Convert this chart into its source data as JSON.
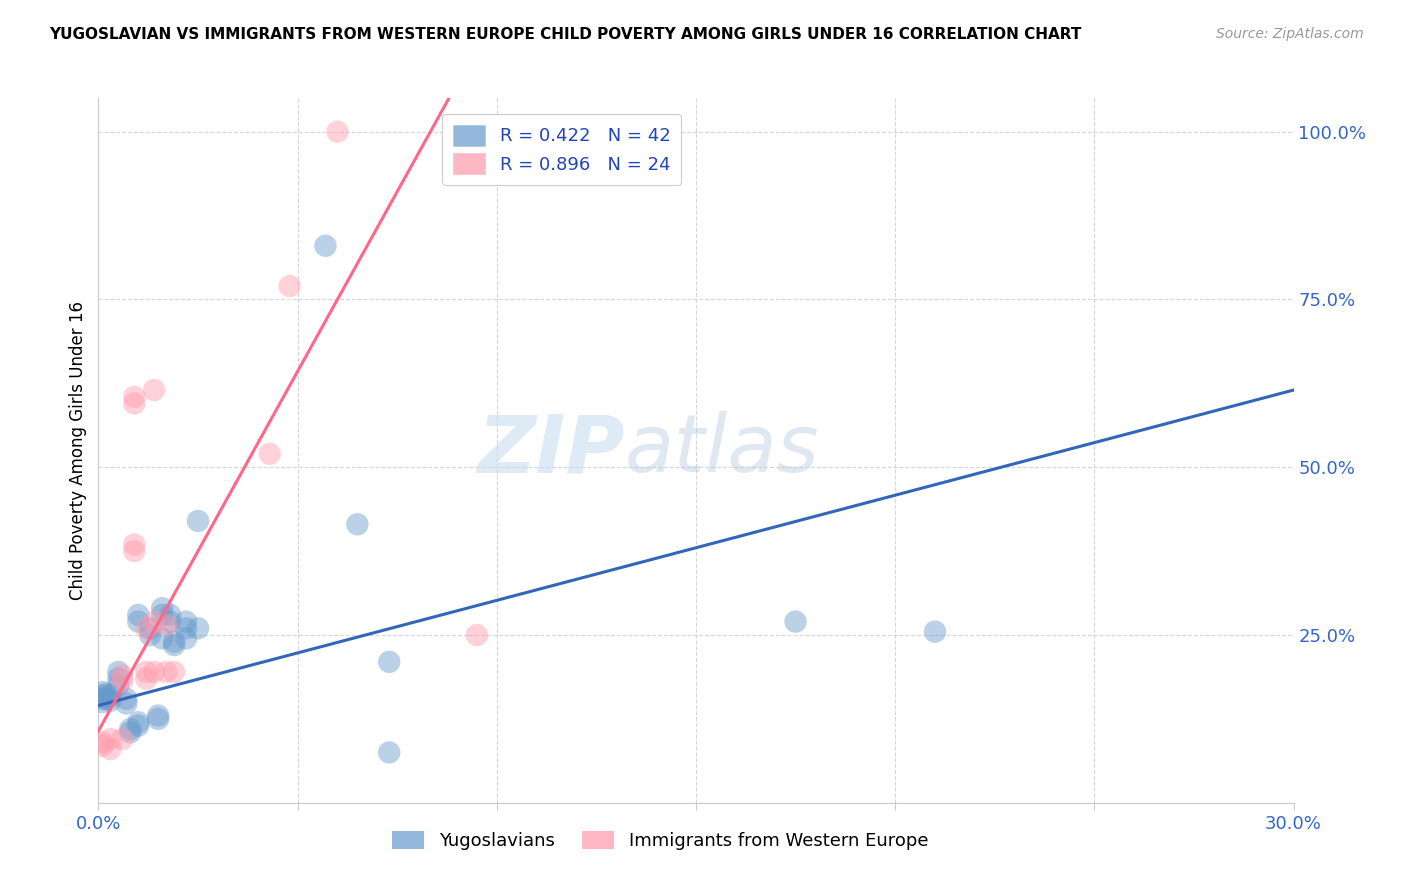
{
  "title": "YUGOSLAVIAN VS IMMIGRANTS FROM WESTERN EUROPE CHILD POVERTY AMONG GIRLS UNDER 16 CORRELATION CHART",
  "source": "Source: ZipAtlas.com",
  "ylabel": "Child Poverty Among Girls Under 16",
  "xlim": [
    0.0,
    0.3
  ],
  "ylim": [
    0.0,
    1.05
  ],
  "x_ticks": [
    0.0,
    0.05,
    0.1,
    0.15,
    0.2,
    0.25,
    0.3
  ],
  "x_tick_labels": [
    "0.0%",
    "",
    "",
    "",
    "",
    "",
    "30.0%"
  ],
  "y_ticks": [
    0.0,
    0.25,
    0.5,
    0.75,
    1.0
  ],
  "y_right_labels": [
    "",
    "25.0%",
    "50.0%",
    "75.0%",
    "100.0%"
  ],
  "legend1_label": "R = 0.422   N = 42",
  "legend2_label": "R = 0.896   N = 24",
  "legend_bottom_label1": "Yugoslavians",
  "legend_bottom_label2": "Immigrants from Western Europe",
  "blue_color": "#6699CC",
  "pink_color": "#FF99AA",
  "line_blue": "#3366BB",
  "line_pink": "#FF6688",
  "watermark_zip": "ZIP",
  "watermark_atlas": "atlas",
  "blue_points": [
    [
      0.001,
      0.155
    ],
    [
      0.001,
      0.16
    ],
    [
      0.001,
      0.15
    ],
    [
      0.001,
      0.165
    ],
    [
      0.002,
      0.155
    ],
    [
      0.002,
      0.158
    ],
    [
      0.002,
      0.162
    ],
    [
      0.003,
      0.16
    ],
    [
      0.003,
      0.152
    ],
    [
      0.005,
      0.195
    ],
    [
      0.005,
      0.185
    ],
    [
      0.005,
      0.175
    ],
    [
      0.007,
      0.155
    ],
    [
      0.007,
      0.148
    ],
    [
      0.008,
      0.11
    ],
    [
      0.008,
      0.105
    ],
    [
      0.01,
      0.27
    ],
    [
      0.01,
      0.28
    ],
    [
      0.01,
      0.115
    ],
    [
      0.01,
      0.12
    ],
    [
      0.013,
      0.26
    ],
    [
      0.013,
      0.25
    ],
    [
      0.015,
      0.13
    ],
    [
      0.015,
      0.125
    ],
    [
      0.016,
      0.29
    ],
    [
      0.016,
      0.28
    ],
    [
      0.016,
      0.245
    ],
    [
      0.018,
      0.28
    ],
    [
      0.018,
      0.27
    ],
    [
      0.019,
      0.24
    ],
    [
      0.019,
      0.235
    ],
    [
      0.022,
      0.27
    ],
    [
      0.022,
      0.26
    ],
    [
      0.022,
      0.245
    ],
    [
      0.025,
      0.26
    ],
    [
      0.025,
      0.42
    ],
    [
      0.057,
      0.83
    ],
    [
      0.065,
      0.415
    ],
    [
      0.073,
      0.21
    ],
    [
      0.073,
      0.075
    ],
    [
      0.175,
      0.27
    ],
    [
      0.21,
      0.255
    ]
  ],
  "pink_points": [
    [
      0.001,
      0.085
    ],
    [
      0.001,
      0.09
    ],
    [
      0.003,
      0.095
    ],
    [
      0.003,
      0.08
    ],
    [
      0.006,
      0.095
    ],
    [
      0.006,
      0.19
    ],
    [
      0.006,
      0.182
    ],
    [
      0.009,
      0.385
    ],
    [
      0.009,
      0.375
    ],
    [
      0.009,
      0.595
    ],
    [
      0.009,
      0.605
    ],
    [
      0.012,
      0.26
    ],
    [
      0.012,
      0.195
    ],
    [
      0.012,
      0.185
    ],
    [
      0.014,
      0.615
    ],
    [
      0.014,
      0.27
    ],
    [
      0.014,
      0.195
    ],
    [
      0.017,
      0.265
    ],
    [
      0.017,
      0.195
    ],
    [
      0.019,
      0.195
    ],
    [
      0.043,
      0.52
    ],
    [
      0.048,
      0.77
    ],
    [
      0.06,
      1.0
    ],
    [
      0.095,
      0.25
    ]
  ],
  "blue_line": [
    [
      0.0,
      0.145
    ],
    [
      0.3,
      0.615
    ]
  ],
  "pink_line": [
    [
      -0.01,
      0.0
    ],
    [
      0.088,
      1.05
    ]
  ]
}
